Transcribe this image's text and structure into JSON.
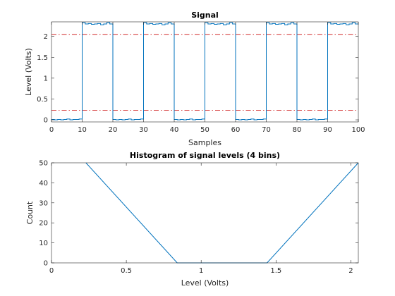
{
  "chart_data": [
    {
      "type": "line",
      "title": "Signal",
      "xlabel": "Samples",
      "ylabel": "Level (Volts)",
      "xlim": [
        0,
        100
      ],
      "ylim": [
        -0.05,
        2.35
      ],
      "xticks": [
        "0",
        "10",
        "20",
        "30",
        "40",
        "50",
        "60",
        "70",
        "80",
        "90",
        "100"
      ],
      "yticks": [
        "0",
        "0.5",
        "1",
        "1.5",
        "2"
      ],
      "grid": false,
      "series": [
        {
          "color": "#0072bd",
          "x": [
            1,
            2,
            3,
            4,
            5,
            6,
            7,
            8,
            9,
            10,
            11,
            12,
            13,
            14,
            15,
            16,
            17,
            18,
            19,
            20,
            21,
            22,
            23,
            24,
            25,
            26,
            27,
            28,
            29,
            30,
            31,
            32,
            33,
            34,
            35,
            36,
            37,
            38,
            39,
            40,
            41,
            42,
            43,
            44,
            45,
            46,
            47,
            48,
            49,
            50,
            51,
            52,
            53,
            54,
            55,
            56,
            57,
            58,
            59,
            60,
            61,
            62,
            63,
            64,
            65,
            66,
            67,
            68,
            69,
            70,
            71,
            72,
            73,
            74,
            75,
            76,
            77,
            78,
            79,
            80,
            81,
            82,
            83,
            84,
            85,
            86,
            87,
            88,
            89,
            90,
            91,
            92,
            93,
            94,
            95,
            96,
            97,
            98,
            99,
            100
          ],
          "values": [
            0.01,
            0.0,
            0.01,
            0.0,
            0.01,
            0.02,
            0.0,
            0.01,
            0.01,
            0.02,
            2.33,
            2.3,
            2.31,
            2.29,
            2.3,
            2.31,
            2.28,
            2.3,
            2.33,
            2.3,
            0.01,
            0.0,
            0.01,
            0.0,
            0.01,
            0.02,
            0.0,
            0.01,
            0.01,
            0.02,
            2.33,
            2.3,
            2.31,
            2.29,
            2.3,
            2.31,
            2.28,
            2.3,
            2.33,
            2.3,
            0.01,
            0.0,
            0.01,
            0.0,
            0.01,
            0.02,
            0.0,
            0.01,
            0.01,
            0.02,
            2.33,
            2.3,
            2.31,
            2.29,
            2.3,
            2.31,
            2.28,
            2.3,
            2.33,
            2.3,
            0.01,
            0.0,
            0.01,
            0.0,
            0.01,
            0.02,
            0.0,
            0.01,
            0.01,
            0.02,
            2.33,
            2.3,
            2.31,
            2.29,
            2.3,
            2.31,
            2.28,
            2.3,
            2.33,
            2.3,
            0.01,
            0.0,
            0.01,
            0.0,
            0.01,
            0.02,
            0.0,
            0.01,
            0.01,
            0.02,
            2.33,
            2.3,
            2.31,
            2.29,
            2.3,
            2.31,
            2.28,
            2.3,
            2.33,
            2.3
          ]
        }
      ],
      "reference_lines": [
        {
          "y": 0.23,
          "color": "#d22b2b",
          "style": "dash-dot"
        },
        {
          "y": 2.05,
          "color": "#d22b2b",
          "style": "dash-dot"
        }
      ]
    },
    {
      "type": "line",
      "title": "Histogram of signal levels (4 bins)",
      "xlabel": "Level (Volts)",
      "ylabel": "Count",
      "xlim": [
        0,
        2.05
      ],
      "ylim": [
        0,
        50
      ],
      "xticks": [
        "0",
        "0.5",
        "1",
        "1.5",
        "2"
      ],
      "yticks": [
        "0",
        "10",
        "20",
        "30",
        "40",
        "50"
      ],
      "grid": false,
      "series": [
        {
          "color": "#0072bd",
          "x": [
            0.23,
            0.84,
            1.44,
            2.05
          ],
          "values": [
            50,
            0,
            0,
            50
          ]
        }
      ]
    }
  ]
}
